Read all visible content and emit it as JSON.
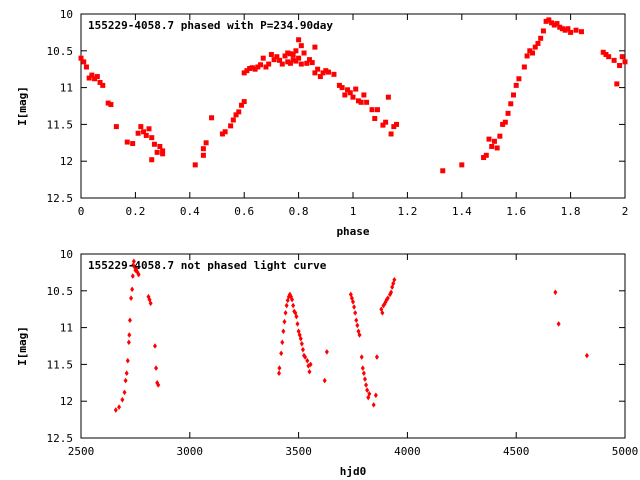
{
  "colors": {
    "points": "#ff0000",
    "axis": "#000000",
    "background": "#ffffff"
  },
  "chart_data": [
    {
      "type": "scatter",
      "title": "155229-4058.7 phased with P=234.90day",
      "xlabel": "phase",
      "ylabel": "I[mag]",
      "xlim": [
        0,
        2
      ],
      "ylim": [
        10,
        12.5
      ],
      "y_inverted": true,
      "xticks": [
        "0",
        "0.2",
        "0.4",
        "0.6",
        "0.8",
        "1",
        "1.2",
        "1.4",
        "1.6",
        "1.8",
        "2"
      ],
      "yticks": [
        "10",
        "10.5",
        "11",
        "11.5",
        "12",
        "12.5"
      ],
      "marker": "square",
      "series": [
        {
          "points": [
            [
              0.0,
              10.6
            ],
            [
              0.01,
              10.65
            ],
            [
              0.02,
              10.72
            ],
            [
              0.03,
              10.87
            ],
            [
              0.04,
              10.83
            ],
            [
              0.05,
              10.88
            ],
            [
              0.06,
              10.85
            ],
            [
              0.07,
              10.93
            ],
            [
              0.08,
              10.97
            ],
            [
              0.1,
              11.21
            ],
            [
              0.11,
              11.23
            ],
            [
              0.13,
              11.53
            ],
            [
              0.17,
              11.74
            ],
            [
              0.19,
              11.76
            ],
            [
              0.21,
              11.62
            ],
            [
              0.22,
              11.53
            ],
            [
              0.23,
              11.6
            ],
            [
              0.24,
              11.65
            ],
            [
              0.25,
              11.56
            ],
            [
              0.26,
              11.68
            ],
            [
              0.26,
              11.98
            ],
            [
              0.27,
              11.77
            ],
            [
              0.28,
              11.88
            ],
            [
              0.29,
              11.8
            ],
            [
              0.3,
              11.86
            ],
            [
              0.3,
              11.9
            ],
            [
              0.42,
              12.05
            ],
            [
              0.45,
              11.92
            ],
            [
              0.45,
              11.83
            ],
            [
              0.46,
              11.75
            ],
            [
              0.48,
              11.41
            ],
            [
              0.52,
              11.63
            ],
            [
              0.53,
              11.6
            ],
            [
              0.55,
              11.52
            ],
            [
              0.56,
              11.44
            ],
            [
              0.57,
              11.37
            ],
            [
              0.58,
              11.33
            ],
            [
              0.59,
              11.24
            ],
            [
              0.6,
              11.19
            ],
            [
              0.6,
              10.8
            ],
            [
              0.61,
              10.77
            ],
            [
              0.62,
              10.74
            ],
            [
              0.63,
              10.73
            ],
            [
              0.64,
              10.75
            ],
            [
              0.65,
              10.72
            ],
            [
              0.66,
              10.69
            ],
            [
              0.67,
              10.6
            ],
            [
              0.68,
              10.72
            ],
            [
              0.69,
              10.68
            ],
            [
              0.7,
              10.55
            ],
            [
              0.71,
              10.62
            ],
            [
              0.72,
              10.58
            ],
            [
              0.73,
              10.63
            ],
            [
              0.74,
              10.68
            ],
            [
              0.75,
              10.57
            ],
            [
              0.76,
              10.53
            ],
            [
              0.76,
              10.65
            ],
            [
              0.77,
              10.54
            ],
            [
              0.77,
              10.67
            ],
            [
              0.78,
              10.55
            ],
            [
              0.78,
              10.62
            ],
            [
              0.79,
              10.5
            ],
            [
              0.79,
              10.64
            ],
            [
              0.8,
              10.35
            ],
            [
              0.8,
              10.6
            ],
            [
              0.81,
              10.68
            ],
            [
              0.81,
              10.43
            ],
            [
              0.82,
              10.53
            ],
            [
              0.83,
              10.67
            ],
            [
              0.84,
              10.62
            ],
            [
              0.85,
              10.66
            ],
            [
              0.86,
              10.45
            ],
            [
              0.86,
              10.8
            ],
            [
              0.87,
              10.75
            ],
            [
              0.88,
              10.85
            ],
            [
              0.89,
              10.8
            ],
            [
              0.9,
              10.77
            ],
            [
              0.91,
              10.79
            ],
            [
              0.93,
              10.82
            ],
            [
              0.95,
              10.97
            ],
            [
              0.96,
              11.0
            ],
            [
              0.97,
              11.1
            ],
            [
              0.98,
              11.03
            ],
            [
              0.99,
              11.07
            ],
            [
              1.0,
              11.13
            ],
            [
              1.01,
              11.02
            ],
            [
              1.02,
              11.18
            ],
            [
              1.03,
              11.2
            ],
            [
              1.04,
              11.1
            ],
            [
              1.05,
              11.2
            ],
            [
              1.07,
              11.3
            ],
            [
              1.08,
              11.42
            ],
            [
              1.09,
              11.3
            ],
            [
              1.11,
              11.51
            ],
            [
              1.12,
              11.47
            ],
            [
              1.13,
              11.13
            ],
            [
              1.14,
              11.63
            ],
            [
              1.15,
              11.53
            ],
            [
              1.16,
              11.5
            ],
            [
              1.33,
              12.13
            ],
            [
              1.4,
              12.05
            ],
            [
              1.48,
              11.95
            ],
            [
              1.49,
              11.92
            ],
            [
              1.5,
              11.7
            ],
            [
              1.51,
              11.8
            ],
            [
              1.52,
              11.73
            ],
            [
              1.53,
              11.82
            ],
            [
              1.54,
              11.66
            ],
            [
              1.55,
              11.5
            ],
            [
              1.56,
              11.47
            ],
            [
              1.57,
              11.35
            ],
            [
              1.58,
              11.22
            ],
            [
              1.59,
              11.1
            ],
            [
              1.6,
              10.97
            ],
            [
              1.61,
              10.88
            ],
            [
              1.63,
              10.72
            ],
            [
              1.64,
              10.57
            ],
            [
              1.65,
              10.5
            ],
            [
              1.66,
              10.53
            ],
            [
              1.67,
              10.45
            ],
            [
              1.68,
              10.4
            ],
            [
              1.69,
              10.33
            ],
            [
              1.7,
              10.23
            ],
            [
              1.71,
              10.1
            ],
            [
              1.72,
              10.08
            ],
            [
              1.73,
              10.12
            ],
            [
              1.74,
              10.15
            ],
            [
              1.75,
              10.13
            ],
            [
              1.76,
              10.18
            ],
            [
              1.77,
              10.2
            ],
            [
              1.78,
              10.22
            ],
            [
              1.79,
              10.2
            ],
            [
              1.8,
              10.25
            ],
            [
              1.82,
              10.22
            ],
            [
              1.84,
              10.24
            ],
            [
              1.92,
              10.52
            ],
            [
              1.93,
              10.55
            ],
            [
              1.94,
              10.58
            ],
            [
              1.96,
              10.63
            ],
            [
              1.97,
              10.95
            ],
            [
              1.98,
              10.7
            ],
            [
              1.99,
              10.58
            ],
            [
              2.0,
              10.65
            ]
          ]
        }
      ]
    },
    {
      "type": "scatter",
      "title": "155229-4058.7 not phased light curve",
      "xlabel": "hjd0",
      "ylabel": "I[mag]",
      "xlim": [
        2500,
        5000
      ],
      "ylim": [
        10,
        12.5
      ],
      "y_inverted": true,
      "xticks": [
        "2500",
        "3000",
        "3500",
        "4000",
        "4500",
        "5000"
      ],
      "yticks": [
        "10",
        "10.5",
        "11",
        "11.5",
        "12",
        "12.5"
      ],
      "marker": "diamond",
      "series": [
        {
          "points": [
            [
              2660,
              12.12
            ],
            [
              2675,
              12.08
            ],
            [
              2690,
              11.98
            ],
            [
              2700,
              11.88
            ],
            [
              2705,
              11.72
            ],
            [
              2710,
              11.62
            ],
            [
              2715,
              11.45
            ],
            [
              2720,
              11.2
            ],
            [
              2722,
              11.1
            ],
            [
              2725,
              10.9
            ],
            [
              2730,
              10.6
            ],
            [
              2735,
              10.48
            ],
            [
              2738,
              10.3
            ],
            [
              2740,
              10.15
            ],
            [
              2743,
              10.1
            ],
            [
              2747,
              10.18
            ],
            [
              2750,
              10.22
            ],
            [
              2755,
              10.2
            ],
            [
              2760,
              10.25
            ],
            [
              2765,
              10.28
            ],
            [
              2810,
              10.58
            ],
            [
              2815,
              10.62
            ],
            [
              2820,
              10.67
            ],
            [
              2840,
              11.25
            ],
            [
              2845,
              11.55
            ],
            [
              2850,
              11.75
            ],
            [
              2855,
              11.78
            ],
            [
              3410,
              11.62
            ],
            [
              3412,
              11.55
            ],
            [
              3420,
              11.35
            ],
            [
              3425,
              11.2
            ],
            [
              3430,
              11.05
            ],
            [
              3435,
              10.92
            ],
            [
              3440,
              10.8
            ],
            [
              3445,
              10.7
            ],
            [
              3450,
              10.63
            ],
            [
              3455,
              10.58
            ],
            [
              3460,
              10.55
            ],
            [
              3465,
              10.58
            ],
            [
              3470,
              10.62
            ],
            [
              3475,
              10.7
            ],
            [
              3480,
              10.78
            ],
            [
              3485,
              10.8
            ],
            [
              3490,
              10.85
            ],
            [
              3495,
              10.95
            ],
            [
              3500,
              11.05
            ],
            [
              3505,
              11.1
            ],
            [
              3510,
              11.15
            ],
            [
              3515,
              11.22
            ],
            [
              3520,
              11.3
            ],
            [
              3525,
              11.38
            ],
            [
              3530,
              11.4
            ],
            [
              3540,
              11.45
            ],
            [
              3545,
              11.52
            ],
            [
              3550,
              11.6
            ],
            [
              3555,
              11.5
            ],
            [
              3620,
              11.72
            ],
            [
              3630,
              11.33
            ],
            [
              3740,
              10.55
            ],
            [
              3745,
              10.6
            ],
            [
              3750,
              10.65
            ],
            [
              3755,
              10.72
            ],
            [
              3760,
              10.8
            ],
            [
              3765,
              10.9
            ],
            [
              3770,
              10.97
            ],
            [
              3775,
              11.05
            ],
            [
              3780,
              11.1
            ],
            [
              3790,
              11.4
            ],
            [
              3795,
              11.55
            ],
            [
              3800,
              11.62
            ],
            [
              3805,
              11.7
            ],
            [
              3810,
              11.78
            ],
            [
              3815,
              11.85
            ],
            [
              3820,
              11.95
            ],
            [
              3825,
              11.9
            ],
            [
              3845,
              12.05
            ],
            [
              3855,
              11.92
            ],
            [
              3860,
              11.4
            ],
            [
              3880,
              10.75
            ],
            [
              3885,
              10.8
            ],
            [
              3890,
              10.7
            ],
            [
              3895,
              10.68
            ],
            [
              3900,
              10.65
            ],
            [
              3905,
              10.62
            ],
            [
              3910,
              10.6
            ],
            [
              3920,
              10.55
            ],
            [
              3925,
              10.52
            ],
            [
              3930,
              10.45
            ],
            [
              3935,
              10.4
            ],
            [
              3940,
              10.35
            ],
            [
              4680,
              10.52
            ],
            [
              4695,
              10.95
            ],
            [
              4825,
              11.38
            ]
          ]
        }
      ]
    }
  ]
}
